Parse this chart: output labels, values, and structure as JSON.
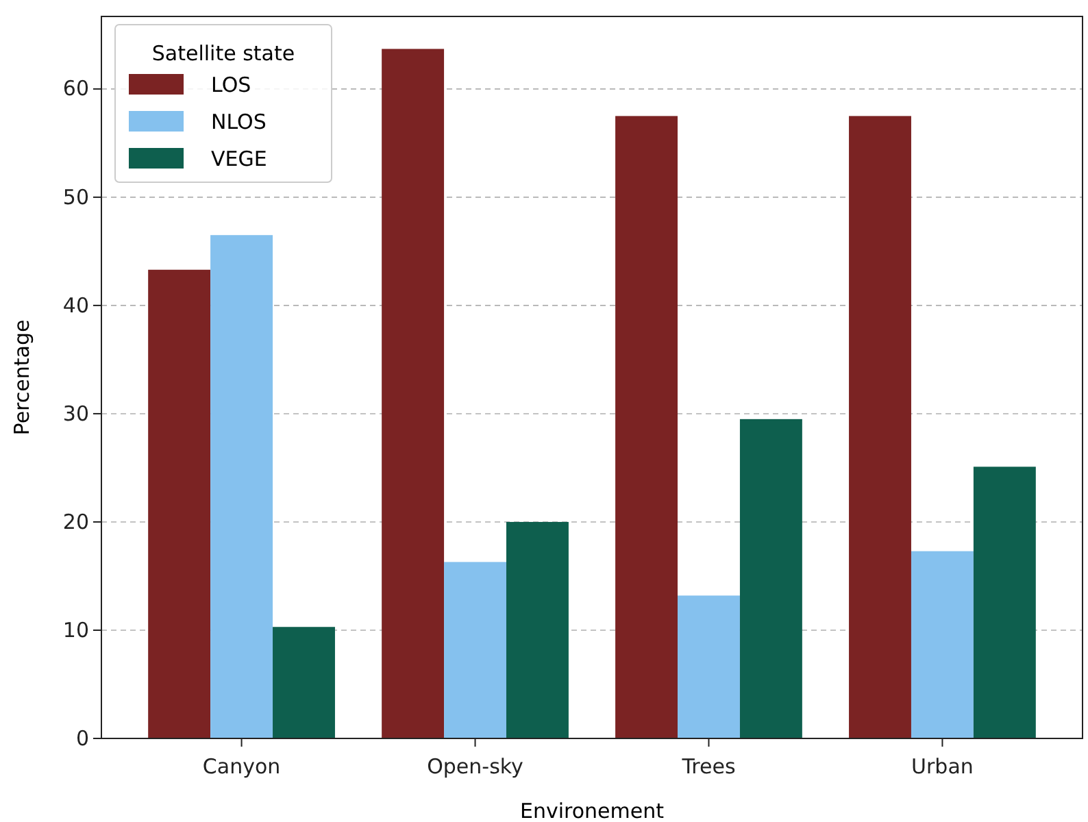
{
  "chart_data": {
    "type": "bar",
    "xlabel": "Environement",
    "ylabel": "Percentage",
    "legend_title": "Satellite state",
    "categories": [
      "Canyon",
      "Open-sky",
      "Trees",
      "Urban"
    ],
    "series": [
      {
        "name": "LOS",
        "color": "#7b2323",
        "values": [
          43.3,
          63.7,
          57.5,
          57.5
        ]
      },
      {
        "name": "NLOS",
        "color": "#85c1ee",
        "values": [
          46.5,
          16.3,
          13.2,
          17.3
        ]
      },
      {
        "name": "VEGE",
        "color": "#0e5f4e",
        "values": [
          10.3,
          20.0,
          29.5,
          25.1
        ]
      }
    ],
    "ylim": [
      0,
      66.7
    ],
    "yticks": [
      0,
      10,
      20,
      30,
      40,
      50,
      60
    ],
    "grid": "y",
    "legend": "top left"
  }
}
